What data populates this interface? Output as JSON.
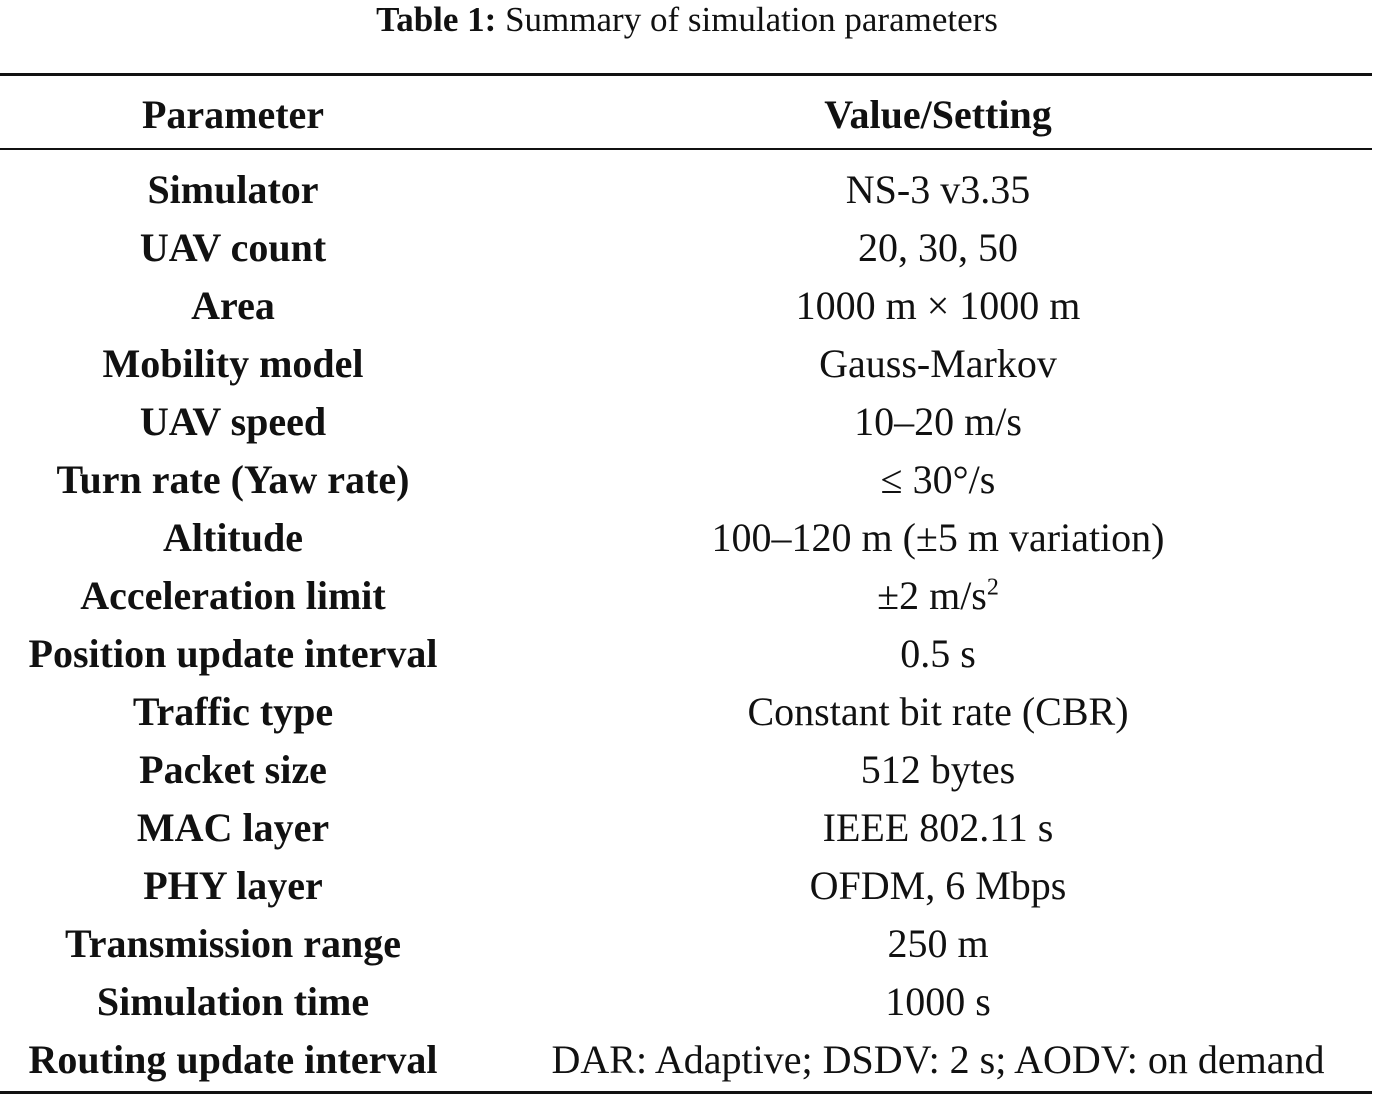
{
  "caption": {
    "label": "Table 1:",
    "text": "Summary of simulation parameters"
  },
  "table": {
    "headers": {
      "parameter": "Parameter",
      "value": "Value/Setting"
    },
    "rows": [
      {
        "parameter": "Simulator",
        "value": "NS-3 v3.35"
      },
      {
        "parameter": "UAV count",
        "value": "20, 30, 50"
      },
      {
        "parameter": "Area",
        "value": "1000 m × 1000 m"
      },
      {
        "parameter": "Mobility model",
        "value": "Gauss-Markov"
      },
      {
        "parameter": "UAV speed",
        "value": "10–20 m/s"
      },
      {
        "parameter": "Turn rate (Yaw rate)",
        "value": "≤ 30°/s"
      },
      {
        "parameter": "Altitude",
        "value": "100–120 m (±5 m variation)"
      },
      {
        "parameter": "Acceleration limit",
        "value": "±2 m/s",
        "value_sup": "2"
      },
      {
        "parameter": "Position update interval",
        "value": "0.5 s"
      },
      {
        "parameter": "Traffic type",
        "value": "Constant bit rate (CBR)"
      },
      {
        "parameter": "Packet size",
        "value": "512 bytes"
      },
      {
        "parameter": "MAC layer",
        "value": "IEEE 802.11 s"
      },
      {
        "parameter": "PHY layer",
        "value": "OFDM, 6 Mbps"
      },
      {
        "parameter": "Transmission range",
        "value": "250 m"
      },
      {
        "parameter": "Simulation time",
        "value": "1000 s"
      },
      {
        "parameter": "Routing update interval",
        "value": "DAR: Adaptive; DSDV: 2 s; AODV: on demand"
      }
    ]
  }
}
